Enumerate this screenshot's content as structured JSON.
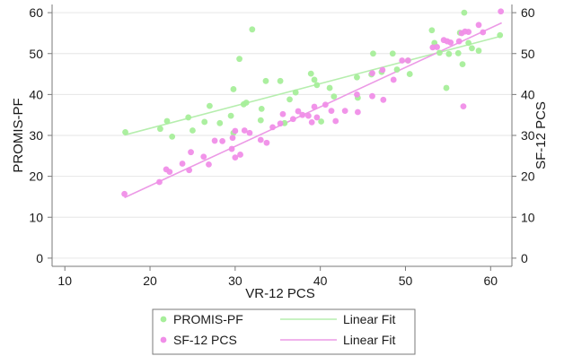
{
  "chart_data": {
    "type": "scatter",
    "title": "",
    "xlabel": "VR-12 PCS",
    "ylabel_left": "PROMIS-PF",
    "ylabel_right": "SF-12 PCS",
    "xlim": [
      8.5,
      62.5
    ],
    "ylim": [
      -2,
      62
    ],
    "x_ticks": [
      10,
      20,
      30,
      40,
      50,
      60
    ],
    "y_ticks": [
      0,
      10,
      20,
      30,
      40,
      50,
      60
    ],
    "grid": true,
    "legend_position": "bottom",
    "series": [
      {
        "name": "PROMIS-PF",
        "kind": "points",
        "axis": "left",
        "color": "#a6ee9a",
        "points": [
          [
            17.1,
            30.8
          ],
          [
            21.2,
            31.6
          ],
          [
            22.0,
            33.5
          ],
          [
            22.6,
            29.7
          ],
          [
            24.5,
            34.4
          ],
          [
            25.0,
            31.2
          ],
          [
            26.4,
            33.3
          ],
          [
            27.0,
            37.2
          ],
          [
            28.2,
            33.0
          ],
          [
            29.5,
            34.8
          ],
          [
            29.8,
            41.3
          ],
          [
            29.8,
            30.6
          ],
          [
            30.5,
            48.7
          ],
          [
            31.0,
            37.6
          ],
          [
            31.3,
            38.0
          ],
          [
            32.0,
            55.9
          ],
          [
            33.1,
            36.5
          ],
          [
            33.0,
            33.7
          ],
          [
            33.6,
            43.3
          ],
          [
            35.3,
            43.3
          ],
          [
            35.8,
            33.0
          ],
          [
            36.4,
            38.8
          ],
          [
            37.1,
            40.5
          ],
          [
            38.9,
            45.1
          ],
          [
            39.3,
            43.6
          ],
          [
            39.6,
            42.3
          ],
          [
            40.1,
            33.4
          ],
          [
            41.1,
            41.6
          ],
          [
            41.6,
            39.5
          ],
          [
            44.3,
            44.2
          ],
          [
            44.4,
            39.2
          ],
          [
            46.0,
            44.9
          ],
          [
            46.2,
            50.0
          ],
          [
            47.2,
            45.5
          ],
          [
            48.5,
            50.0
          ],
          [
            49.0,
            46.1
          ],
          [
            50.3,
            48.3
          ],
          [
            50.5,
            45.0
          ],
          [
            53.1,
            55.7
          ],
          [
            53.4,
            52.6
          ],
          [
            54.0,
            50.2
          ],
          [
            54.8,
            41.6
          ],
          [
            55.1,
            49.9
          ],
          [
            56.2,
            50.1
          ],
          [
            56.4,
            55.1
          ],
          [
            56.7,
            47.4
          ],
          [
            56.9,
            60.0
          ],
          [
            57.4,
            52.6
          ],
          [
            57.8,
            51.3
          ],
          [
            58.6,
            50.7
          ],
          [
            61.1,
            54.5
          ]
        ]
      },
      {
        "name": "SF-12 PCS",
        "kind": "points",
        "axis": "right",
        "color": "#f08ee8",
        "points": [
          [
            17.0,
            15.7
          ],
          [
            21.1,
            18.6
          ],
          [
            21.9,
            21.7
          ],
          [
            22.3,
            21.1
          ],
          [
            23.8,
            23.1
          ],
          [
            24.6,
            21.5
          ],
          [
            24.8,
            25.9
          ],
          [
            26.3,
            24.8
          ],
          [
            26.9,
            22.9
          ],
          [
            27.6,
            28.7
          ],
          [
            28.5,
            28.6
          ],
          [
            29.6,
            26.7
          ],
          [
            29.7,
            29.4
          ],
          [
            30.0,
            31.1
          ],
          [
            30.0,
            24.6
          ],
          [
            30.6,
            25.3
          ],
          [
            31.1,
            31.2
          ],
          [
            31.7,
            30.6
          ],
          [
            33.0,
            28.9
          ],
          [
            33.7,
            28.2
          ],
          [
            34.4,
            32.0
          ],
          [
            35.3,
            32.9
          ],
          [
            35.6,
            35.2
          ],
          [
            36.8,
            34.0
          ],
          [
            37.4,
            35.9
          ],
          [
            37.9,
            35.0
          ],
          [
            38.6,
            34.8
          ],
          [
            39.0,
            33.2
          ],
          [
            39.3,
            37.0
          ],
          [
            39.6,
            34.4
          ],
          [
            40.6,
            37.5
          ],
          [
            41.3,
            36.0
          ],
          [
            41.8,
            33.5
          ],
          [
            42.9,
            36.0
          ],
          [
            44.3,
            40.0
          ],
          [
            44.4,
            35.7
          ],
          [
            46.1,
            45.2
          ],
          [
            46.1,
            39.6
          ],
          [
            47.4,
            38.7
          ],
          [
            47.3,
            46.0
          ],
          [
            48.6,
            43.6
          ],
          [
            49.6,
            48.3
          ],
          [
            50.3,
            48.3
          ],
          [
            53.2,
            51.5
          ],
          [
            53.7,
            51.6
          ],
          [
            54.5,
            53.3
          ],
          [
            54.9,
            53.0
          ],
          [
            55.3,
            52.7
          ],
          [
            56.3,
            53.0
          ],
          [
            56.6,
            55.0
          ],
          [
            56.8,
            37.1
          ],
          [
            57.0,
            55.4
          ],
          [
            57.4,
            55.3
          ],
          [
            58.6,
            57.0
          ],
          [
            59.1,
            55.2
          ],
          [
            61.2,
            60.3
          ]
        ]
      }
    ],
    "fit_lines": [
      {
        "name": "Linear Fit",
        "axis": "left",
        "color": "#b6eeae",
        "x": [
          17.0,
          61.3
        ],
        "y": [
          30.1,
          54.3
        ]
      },
      {
        "name": "Linear Fit",
        "axis": "right",
        "color": "#ec9ae6",
        "x": [
          17.0,
          61.3
        ],
        "y": [
          14.8,
          57.5
        ]
      }
    ],
    "legend": [
      {
        "label": "PROMIS-PF",
        "marker": "point",
        "color": "#a6ee9a"
      },
      {
        "label": "Linear Fit",
        "marker": "line",
        "color": "#b6eeae"
      },
      {
        "label": "SF-12 PCS",
        "marker": "point",
        "color": "#f08ee8"
      },
      {
        "label": "Linear Fit",
        "marker": "line",
        "color": "#ec9ae6"
      }
    ]
  },
  "colors": {
    "gridline": "#e6e6e6",
    "axis": "#7a7a7a",
    "text": "#1a1a1a"
  }
}
